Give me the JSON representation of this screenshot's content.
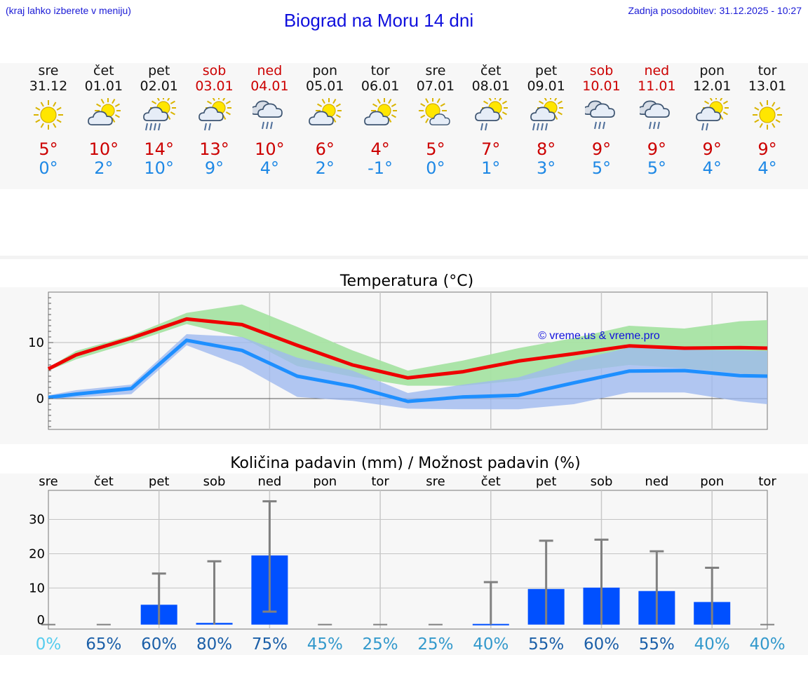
{
  "header": {
    "menu_hint": "(kraj lahko izberete v meniju)",
    "title": "Biograd na Moru 14 dni",
    "updated": "Zadnja posodobitev: 31.12.2025 - 10:27"
  },
  "days": [
    {
      "name": "sre",
      "date": "31.12",
      "icon": "sun-icon",
      "max": "5°",
      "min": "0°",
      "weekend": false
    },
    {
      "name": "čet",
      "date": "01.01",
      "icon": "partly-cloudy-icon",
      "max": "10°",
      "min": "2°",
      "weekend": false
    },
    {
      "name": "pet",
      "date": "02.01",
      "icon": "sun-cloud-rain-icon",
      "max": "14°",
      "min": "10°",
      "weekend": false
    },
    {
      "name": "sob",
      "date": "03.01",
      "icon": "sun-cloud-light-rain-icon",
      "max": "13°",
      "min": "9°",
      "weekend": true
    },
    {
      "name": "ned",
      "date": "04.01",
      "icon": "cloud-rain-icon",
      "max": "10°",
      "min": "4°",
      "weekend": true
    },
    {
      "name": "pon",
      "date": "05.01",
      "icon": "partly-cloudy-icon",
      "max": "6°",
      "min": "2°",
      "weekend": false
    },
    {
      "name": "tor",
      "date": "06.01",
      "icon": "partly-cloudy-icon",
      "max": "4°",
      "min": "-1°",
      "weekend": false
    },
    {
      "name": "sre",
      "date": "07.01",
      "icon": "sun-small-cloud-icon",
      "max": "5°",
      "min": "0°",
      "weekend": false
    },
    {
      "name": "čet",
      "date": "08.01",
      "icon": "sun-cloud-light-rain-icon",
      "max": "7°",
      "min": "1°",
      "weekend": false
    },
    {
      "name": "pet",
      "date": "09.01",
      "icon": "sun-cloud-rain-icon",
      "max": "8°",
      "min": "3°",
      "weekend": false
    },
    {
      "name": "sob",
      "date": "10.01",
      "icon": "cloud-rain-icon",
      "max": "9°",
      "min": "5°",
      "weekend": true
    },
    {
      "name": "ned",
      "date": "11.01",
      "icon": "cloud-rain-icon",
      "max": "9°",
      "min": "5°",
      "weekend": true
    },
    {
      "name": "pon",
      "date": "12.01",
      "icon": "sun-cloud-light-rain-icon",
      "max": "9°",
      "min": "4°",
      "weekend": false
    },
    {
      "name": "tor",
      "date": "13.01",
      "icon": "sun-icon",
      "max": "9°",
      "min": "4°",
      "weekend": false
    }
  ],
  "colors": {
    "max_line": "#ee0000",
    "min_line": "#1e8fff",
    "max_band": "#a6e3a3",
    "min_band": "#9db9ef",
    "overlap_band": "#77c5a8",
    "bar": "#0050ff",
    "whisker": "#808080",
    "weekend": "#cc0000",
    "pct_light": "#55ccee",
    "pct_mid": "#3399cc",
    "pct_dark": "#1b5fa8"
  },
  "chart_data": [
    {
      "type": "line",
      "title": "Temperatura (°C)",
      "watermark": "© vreme.us & vreme.pro",
      "ylim": [
        -5.5,
        19
      ],
      "yticks": [
        0,
        10
      ],
      "x": [
        0,
        0.5,
        1.5,
        2.5,
        3.5,
        4.5,
        5.5,
        6.5,
        7.5,
        8.5,
        9.5,
        10.5,
        11.5,
        12.5,
        13
      ],
      "series": [
        {
          "name": "max",
          "values": [
            5.3,
            7.8,
            10.8,
            14.2,
            13.2,
            9.5,
            6.0,
            3.7,
            4.8,
            6.7,
            8.0,
            9.4,
            9.0,
            9.1,
            9.0
          ]
        },
        {
          "name": "min",
          "values": [
            0.2,
            0.8,
            1.8,
            10.4,
            8.6,
            4.0,
            2.2,
            -0.5,
            0.3,
            0.6,
            2.8,
            4.9,
            5.0,
            4.1,
            4.0
          ]
        },
        {
          "name": "max_band_upper",
          "values": [
            5.5,
            8.5,
            11.3,
            15.3,
            16.8,
            12.8,
            8.6,
            5.0,
            6.8,
            9.0,
            10.8,
            13.0,
            12.5,
            13.8,
            14.0
          ]
        },
        {
          "name": "max_band_lower",
          "values": [
            5.0,
            7.0,
            10.0,
            13.3,
            10.9,
            5.8,
            3.9,
            2.3,
            2.3,
            3.2,
            4.8,
            6.0,
            5.4,
            4.5,
            4.0
          ]
        },
        {
          "name": "min_band_upper",
          "values": [
            0.6,
            1.5,
            2.5,
            11.5,
            11.0,
            7.3,
            5.0,
            1.0,
            2.5,
            3.8,
            6.8,
            9.1,
            8.7,
            8.6,
            8.5
          ]
        },
        {
          "name": "min_band_lower",
          "values": [
            -0.1,
            0.2,
            0.8,
            9.5,
            5.8,
            0.3,
            -0.4,
            -1.8,
            -1.9,
            -1.9,
            -1.0,
            1.1,
            1.1,
            -0.5,
            -1.0
          ]
        }
      ]
    },
    {
      "type": "bar",
      "title": "Količina padavin (mm) / Možnost padavin (%)",
      "categories": [
        "sre",
        "čet",
        "pet",
        "sob",
        "ned",
        "pon",
        "tor",
        "sre",
        "čet",
        "pet",
        "sob",
        "ned",
        "pon",
        "tor"
      ],
      "values": [
        0,
        0,
        5.8,
        0.5,
        20.2,
        0,
        0,
        0,
        0.2,
        10.4,
        10.8,
        9.8,
        6.6,
        0
      ],
      "error_high": [
        0,
        0,
        14.9,
        18.5,
        36.0,
        0,
        0,
        0,
        12.4,
        24.5,
        24.8,
        21.4,
        16.6,
        0
      ],
      "error_low": [
        0,
        0,
        0,
        0,
        3.8,
        0,
        0,
        0,
        0,
        0,
        0,
        0,
        0,
        0
      ],
      "ylim": [
        -2,
        38.5
      ],
      "yticks": [
        0,
        10,
        20,
        30
      ],
      "chance": [
        "0%",
        "65%",
        "60%",
        "80%",
        "75%",
        "45%",
        "25%",
        "25%",
        "40%",
        "55%",
        "60%",
        "55%",
        "40%",
        "40%"
      ],
      "chance_values": [
        0,
        65,
        60,
        80,
        75,
        45,
        25,
        25,
        40,
        55,
        60,
        55,
        40,
        40
      ]
    }
  ]
}
